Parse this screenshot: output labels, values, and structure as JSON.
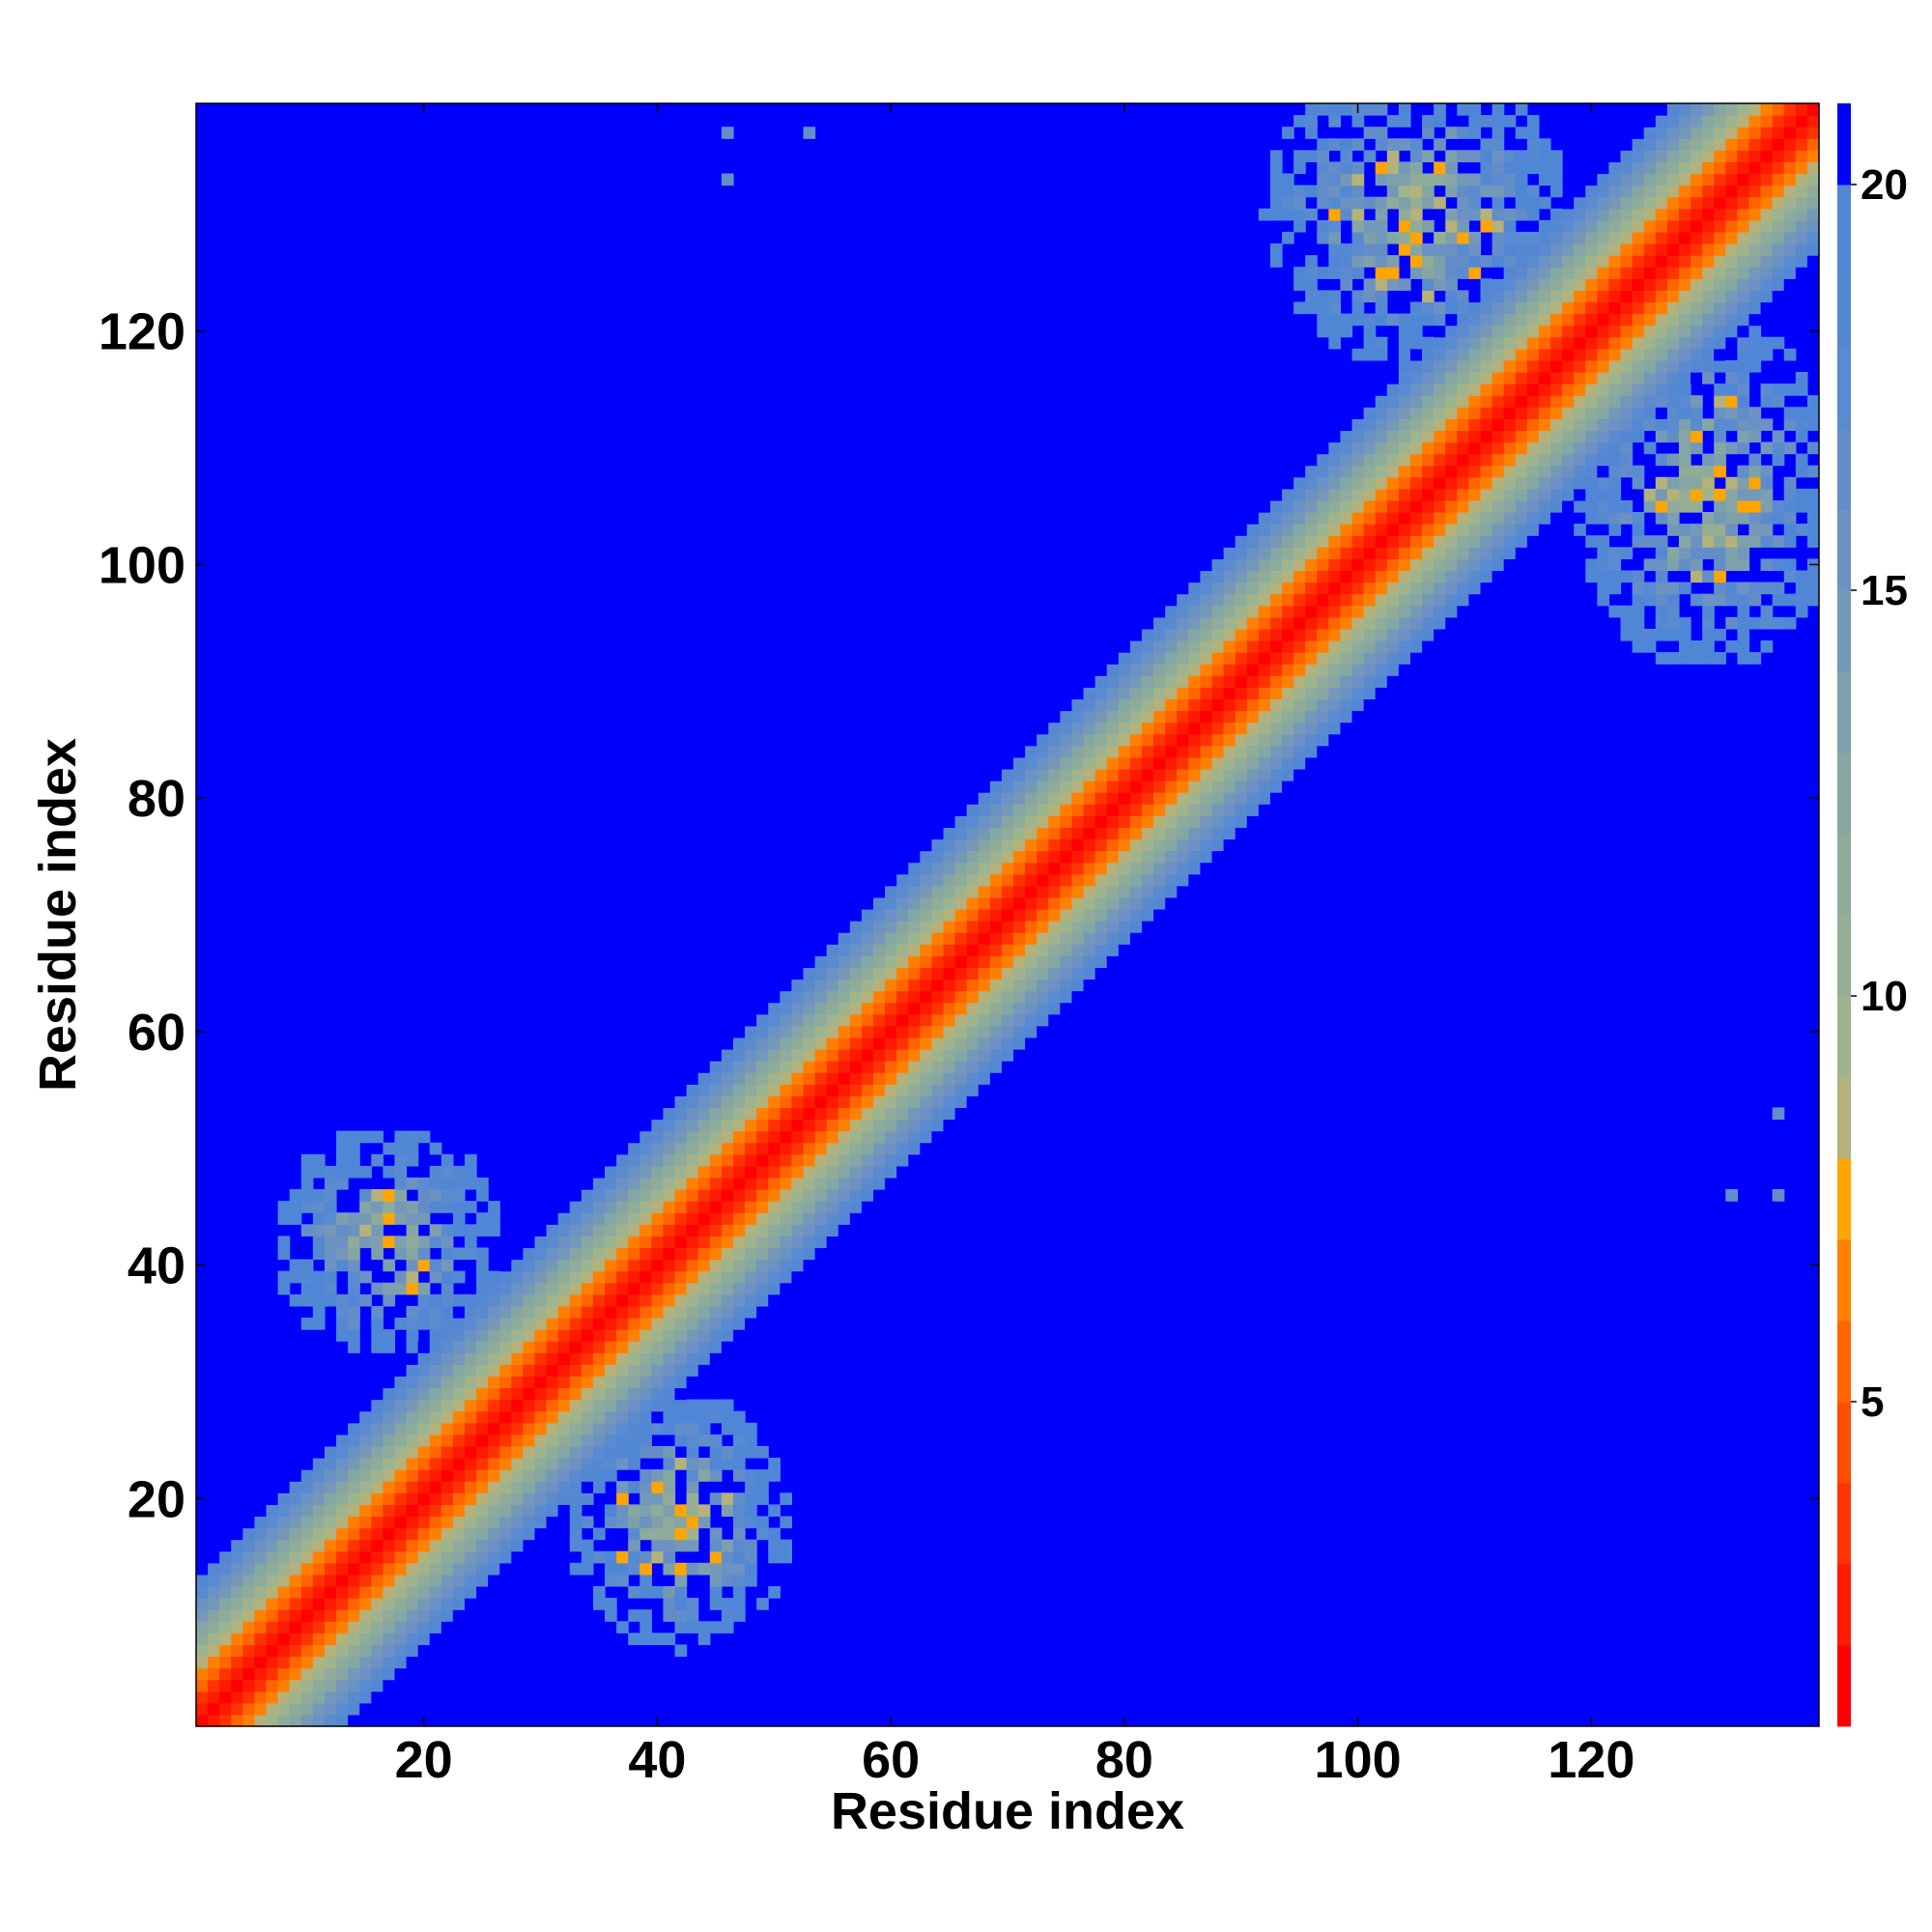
{
  "chart_data": {
    "type": "heatmap",
    "title": "",
    "xlabel": "Residue index",
    "ylabel": "Residue index",
    "n_residues": 139,
    "xlim": [
      1,
      139
    ],
    "ylim": [
      1,
      139
    ],
    "x_ticks": [
      20,
      40,
      60,
      80,
      100,
      120
    ],
    "y_ticks": [
      20,
      40,
      60,
      80,
      100,
      120
    ],
    "x_tick_labels": [
      "20",
      "40",
      "60",
      "80",
      "100",
      "120"
    ],
    "y_tick_labels": [
      "20",
      "40",
      "60",
      "80",
      "100",
      "120"
    ],
    "colorbar": {
      "range": [
        1,
        21
      ],
      "ticks": [
        5,
        10,
        15,
        20
      ],
      "tick_labels": [
        "5",
        "10",
        "15",
        "20"
      ],
      "levels": [
        {
          "max": 2,
          "color": "#ff0000"
        },
        {
          "max": 3,
          "color": "#ff1a00"
        },
        {
          "max": 4,
          "color": "#ff3300"
        },
        {
          "max": 5,
          "color": "#ff4d00"
        },
        {
          "max": 6,
          "color": "#ff6600"
        },
        {
          "max": 7,
          "color": "#ff8000"
        },
        {
          "max": 8,
          "color": "#ffa500"
        },
        {
          "max": 9,
          "color": "#b4b17a"
        },
        {
          "max": 10,
          "color": "#9eb48f"
        },
        {
          "max": 11,
          "color": "#95ae93"
        },
        {
          "max": 12,
          "color": "#8fab9a"
        },
        {
          "max": 13,
          "color": "#86a6a3"
        },
        {
          "max": 14,
          "color": "#7ea0ad"
        },
        {
          "max": 15,
          "color": "#7499b8"
        },
        {
          "max": 16,
          "color": "#6b92c2"
        },
        {
          "max": 17,
          "color": "#638dc9"
        },
        {
          "max": 18,
          "color": "#5a8ad0"
        },
        {
          "max": 19,
          "color": "#5588d3"
        },
        {
          "max": 20,
          "color": "#5086d6"
        },
        {
          "max": 21,
          "color": "#0000ff"
        }
      ]
    },
    "description_of_values": "distance between residue i and j; diagonal band near 0, off-diagonal contact patches",
    "background_value": 21,
    "diagonal_band": {
      "value_per_offset": [
        1,
        2.5,
        4,
        5.5,
        7,
        8.5,
        10,
        11.5,
        13,
        14.5,
        16,
        17.5,
        19,
        20.5
      ]
    },
    "contact_patches": [
      {
        "i_range": [
          8,
          27
        ],
        "j_range": [
          33,
          52
        ],
        "center": [
          17,
          42
        ],
        "core_value": 8
      },
      {
        "i_range": [
          33,
          52
        ],
        "j_range": [
          7,
          28
        ],
        "center": [
          42,
          18
        ],
        "core_value": 8
      },
      {
        "i_range": [
          92,
          117
        ],
        "j_range": [
          114,
          139
        ],
        "center": [
          105,
          130
        ],
        "core_value": 8
      },
      {
        "i_range": [
          117,
          139
        ],
        "j_range": [
          92,
          121
        ],
        "center": [
          130,
          106
        ],
        "core_value": 8
      }
    ],
    "sparse_points": [
      {
        "i": 46,
        "j": 137,
        "value": 17
      },
      {
        "i": 53,
        "j": 137,
        "value": 17
      },
      {
        "i": 46,
        "j": 133,
        "value": 17
      },
      {
        "i": 136,
        "j": 53,
        "value": 17
      },
      {
        "i": 132,
        "j": 46,
        "value": 17
      },
      {
        "i": 136,
        "j": 46,
        "value": 17
      }
    ]
  }
}
